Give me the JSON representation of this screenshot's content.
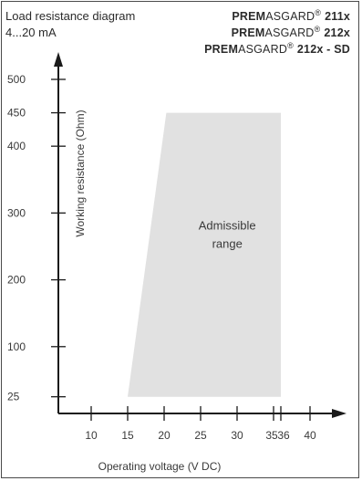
{
  "chart_data": {
    "type": "area",
    "title_lines": [
      "Load resistance diagram",
      "4...20 mA"
    ],
    "products": [
      {
        "bold": "PREM",
        "normal": "ASGARD",
        "reg": "®",
        "model": "211x"
      },
      {
        "bold": "PREM",
        "normal": "ASGARD",
        "reg": "®",
        "model": "212x"
      },
      {
        "bold": "PREM",
        "normal": "ASGARD",
        "reg": "®",
        "model": "212x - SD"
      }
    ],
    "xlabel": "Operating voltage  (V DC)",
    "ylabel": "Working resistance  (Ohm)",
    "xlim": [
      5.5,
      44
    ],
    "ylim": [
      0,
      530
    ],
    "x_ticks": [
      {
        "value": 10,
        "label": "10"
      },
      {
        "value": 15,
        "label": "15"
      },
      {
        "value": 20,
        "label": "20"
      },
      {
        "value": 25,
        "label": "25"
      },
      {
        "value": 30,
        "label": "30"
      },
      {
        "value": 35,
        "label": "35"
      },
      {
        "value": 36,
        "label": "36"
      },
      {
        "value": 40,
        "label": "40"
      }
    ],
    "y_ticks": [
      {
        "value": 25,
        "label": "25"
      },
      {
        "value": 100,
        "label": "100"
      },
      {
        "value": 200,
        "label": "200"
      },
      {
        "value": 300,
        "label": "300"
      },
      {
        "value": 400,
        "label": "400"
      },
      {
        "value": 450,
        "label": "450"
      },
      {
        "value": 500,
        "label": "500"
      }
    ],
    "region": {
      "label_lines": [
        "Admissible",
        "range"
      ],
      "color": "#e1e1e1",
      "points": [
        [
          15,
          25
        ],
        [
          20.3,
          450
        ],
        [
          36,
          450
        ],
        [
          36,
          25
        ]
      ]
    },
    "axis_color": "#1a1a1a"
  }
}
